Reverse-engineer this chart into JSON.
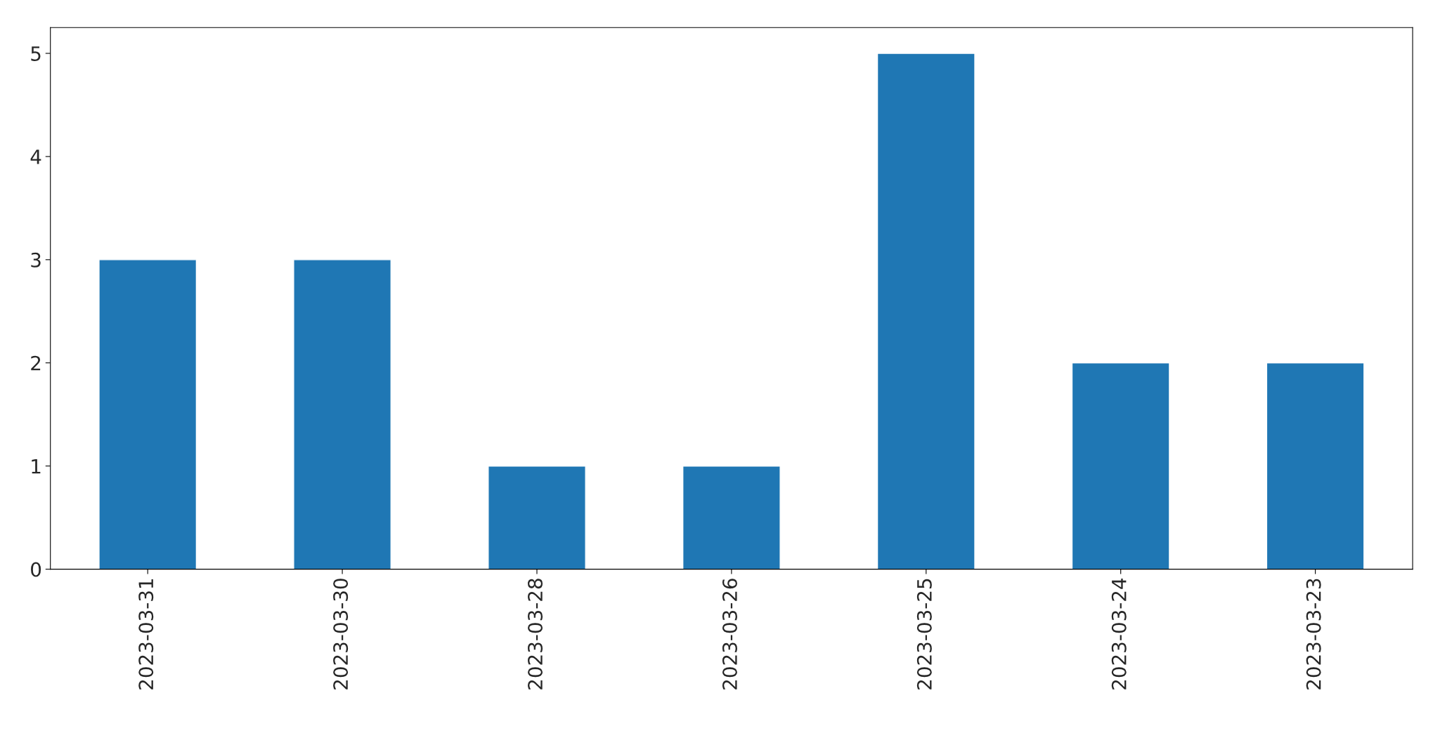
{
  "chart_data": {
    "type": "bar",
    "categories": [
      "2023-03-31",
      "2023-03-30",
      "2023-03-28",
      "2023-03-26",
      "2023-03-25",
      "2023-03-24",
      "2023-03-23"
    ],
    "values": [
      3,
      3,
      1,
      1,
      5,
      2,
      2
    ],
    "color": "#1f77b4",
    "ylim": [
      0,
      5.25
    ],
    "yticks": [
      0,
      1,
      2,
      3,
      4,
      5
    ]
  }
}
